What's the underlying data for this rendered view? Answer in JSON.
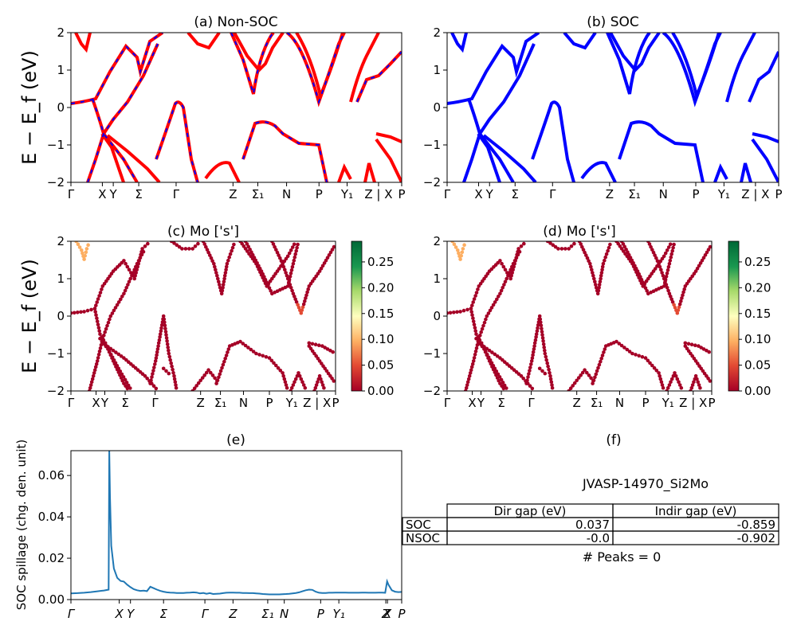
{
  "chart_data": [
    {
      "type": "line",
      "title": "(a) Non-SOC",
      "ylabel": "E − E_f (eV)",
      "ylim": [
        -2,
        2
      ],
      "yticks": [
        "2",
        "1",
        "0",
        "−1",
        "−2"
      ],
      "xticks": [
        "Γ",
        "X",
        "Y",
        "Σ",
        "Γ",
        "Z",
        "Σ₁",
        "N",
        "P",
        "Y₁",
        "Z | X",
        "P"
      ],
      "series_style": "red solid with blue dashes"
    },
    {
      "type": "line",
      "title": "(b) SOC",
      "ylim": [
        -2,
        2
      ],
      "yticks": [
        "2",
        "1",
        "0",
        "−1",
        "−2"
      ],
      "xticks": [
        "Γ",
        "X",
        "Y",
        "Σ",
        "Γ",
        "Z",
        "Σ₁",
        "N",
        "P",
        "Y₁",
        "Z | X",
        "P"
      ],
      "series_style": "blue solid"
    },
    {
      "type": "scatter",
      "title": "(c)  Mo ['s']",
      "ylabel": "E − E_f (eV)",
      "ylim": [
        -2,
        2
      ],
      "yticks": [
        "2",
        "1",
        "0",
        "−1",
        "−2"
      ],
      "xticks": [
        "Γ",
        "X",
        "Y",
        "Σ",
        "Γ",
        "Z",
        "Σ₁",
        "N",
        "P",
        "Y₁",
        "Z | X",
        "P"
      ],
      "colorbar": {
        "min": 0.0,
        "max": 0.29,
        "ticks": [
          "0.25",
          "0.20",
          "0.15",
          "0.10",
          "0.05",
          "0.00"
        ],
        "cmap": "RdYlGn"
      }
    },
    {
      "type": "scatter",
      "title": "(d) Mo ['s']",
      "ylim": [
        -2,
        2
      ],
      "yticks": [
        "2",
        "1",
        "0",
        "−1",
        "−2"
      ],
      "xticks": [
        "Γ",
        "X",
        "Y",
        "Σ",
        "Γ",
        "Z",
        "Σ₁",
        "N",
        "P",
        "Y₁",
        "Z | X",
        "P"
      ],
      "colorbar": {
        "min": 0.0,
        "max": 0.29,
        "ticks": [
          "0.25",
          "0.20",
          "0.15",
          "0.10",
          "0.05",
          "0.00"
        ],
        "cmap": "RdYlGn"
      }
    },
    {
      "type": "line",
      "title": "(e)",
      "ylabel": "SOC spillage (chg. den. unit)",
      "ylim": [
        0,
        0.072
      ],
      "yticks": [
        "0.06",
        "0.04",
        "0.02",
        "0.00"
      ],
      "xticks": [
        "Γ",
        "X",
        "Y",
        "Σ",
        "Γ",
        "Z",
        "Σ₁",
        "N",
        "P",
        "Y₁",
        "Z",
        "X",
        "P"
      ],
      "x": [
        0,
        2,
        4,
        6,
        8,
        10,
        11.4,
        11.6,
        11.8,
        12.2,
        13,
        14,
        15,
        16,
        17,
        18,
        19,
        20,
        21,
        22,
        23,
        24,
        25,
        26,
        27,
        28,
        29,
        30,
        31,
        32,
        33,
        34,
        35,
        36,
        37,
        38,
        39,
        40,
        41,
        42,
        43,
        44,
        45,
        46,
        47,
        48,
        49,
        50,
        51,
        52,
        53,
        54,
        55,
        56,
        57,
        58,
        59,
        60,
        61,
        62,
        63,
        64,
        65,
        66,
        67,
        68,
        69,
        70,
        71,
        72,
        73,
        74,
        75,
        76,
        77,
        78,
        79,
        80,
        81,
        82,
        83,
        84,
        85,
        86,
        87,
        88,
        89,
        90,
        91,
        92,
        93,
        94,
        95,
        95.6,
        96,
        97,
        98,
        99,
        100
      ],
      "y": [
        0.003,
        0.0031,
        0.0033,
        0.0036,
        0.004,
        0.0044,
        0.0048,
        0.072,
        0.05,
        0.026,
        0.015,
        0.0105,
        0.009,
        0.0087,
        0.0072,
        0.006,
        0.005,
        0.0045,
        0.0042,
        0.0043,
        0.0041,
        0.0062,
        0.0055,
        0.0048,
        0.0042,
        0.0038,
        0.0035,
        0.0034,
        0.0033,
        0.0032,
        0.0032,
        0.0032,
        0.0033,
        0.0034,
        0.0035,
        0.0034,
        0.003,
        0.0032,
        0.0028,
        0.0031,
        0.0027,
        0.0028,
        0.0029,
        0.0031,
        0.0033,
        0.0034,
        0.0034,
        0.0033,
        0.0033,
        0.0032,
        0.0032,
        0.0031,
        0.0031,
        0.003,
        0.0029,
        0.0027,
        0.0026,
        0.0025,
        0.0025,
        0.0025,
        0.0025,
        0.0026,
        0.0027,
        0.0028,
        0.003,
        0.0032,
        0.0035,
        0.004,
        0.0045,
        0.0048,
        0.0047,
        0.0038,
        0.0033,
        0.0032,
        0.0032,
        0.0033,
        0.0033,
        0.0034,
        0.0034,
        0.0034,
        0.0034,
        0.0033,
        0.0033,
        0.0033,
        0.0033,
        0.0034,
        0.0034,
        0.0033,
        0.0033,
        0.0033,
        0.0034,
        0.0034,
        0.0033,
        0.0088,
        0.0072,
        0.0045,
        0.0038,
        0.0036,
        0.0037
      ]
    },
    {
      "type": "table",
      "title": "(f)",
      "subtitle": "JVASP-14970_Si2Mo",
      "columns": [
        "Dir gap (eV)",
        "Indir gap (eV)"
      ],
      "rows": [
        {
          "label": "SOC",
          "values": [
            "0.037",
            "-0.859"
          ]
        },
        {
          "label": "NSOC",
          "values": [
            "-0.0",
            "-0.902"
          ]
        }
      ],
      "footer": "# Peaks = 0"
    }
  ],
  "colors": {
    "nonsoc_line": "#ff0000",
    "nonsoc_dash": "#0000ff",
    "soc_line": "#0000ff",
    "spillage_line": "#1f77b4"
  }
}
